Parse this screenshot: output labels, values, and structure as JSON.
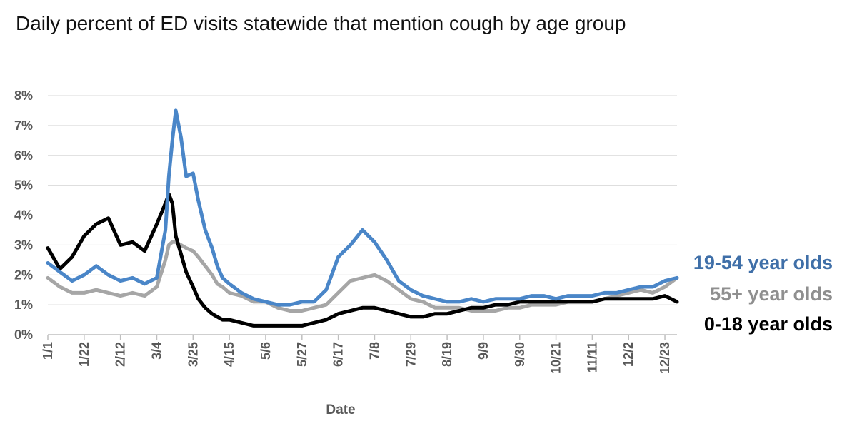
{
  "chart_data": {
    "type": "line",
    "title": "Daily percent of ED visits statewide that mention cough by age group",
    "xlabel": "Date",
    "ylabel": "",
    "x_tick_labels": [
      "1/1",
      "1/22",
      "2/12",
      "3/4",
      "3/25",
      "4/15",
      "5/6",
      "5/27",
      "6/17",
      "7/8",
      "7/29",
      "8/19",
      "9/9",
      "9/30",
      "10/21",
      "11/11",
      "12/2",
      "12/23"
    ],
    "y_tick_labels": [
      "0%",
      "1%",
      "2%",
      "3%",
      "4%",
      "5%",
      "6%",
      "7%",
      "8%"
    ],
    "ylim": [
      0,
      8
    ],
    "y_unit": "%",
    "grid": true,
    "legend": "right",
    "x_day_of_year": [
      0,
      7,
      14,
      21,
      28,
      35,
      42,
      49,
      56,
      63,
      68,
      70,
      72,
      74,
      77,
      80,
      84,
      87,
      91,
      95,
      98,
      101,
      105,
      112,
      119,
      126,
      133,
      140,
      147,
      154,
      161,
      168,
      175,
      182,
      189,
      196,
      203,
      210,
      217,
      224,
      231,
      238,
      245,
      252,
      259,
      266,
      273,
      280,
      287,
      294,
      301,
      308,
      315,
      322,
      329,
      336,
      343,
      350,
      357,
      364
    ],
    "series": [
      {
        "name": "19-54 year olds",
        "color": "#4A86C8",
        "label_color": "#3F6FA8",
        "values": [
          2.4,
          2.1,
          1.8,
          2.0,
          2.3,
          2.0,
          1.8,
          1.9,
          1.7,
          1.9,
          3.5,
          5.3,
          6.5,
          7.5,
          6.6,
          5.3,
          5.4,
          4.5,
          3.5,
          2.9,
          2.3,
          1.9,
          1.7,
          1.4,
          1.2,
          1.1,
          1.0,
          1.0,
          1.1,
          1.1,
          1.5,
          2.6,
          3.0,
          3.5,
          3.1,
          2.5,
          1.8,
          1.5,
          1.3,
          1.2,
          1.1,
          1.1,
          1.2,
          1.1,
          1.2,
          1.2,
          1.2,
          1.3,
          1.3,
          1.2,
          1.3,
          1.3,
          1.3,
          1.4,
          1.4,
          1.5,
          1.6,
          1.6,
          1.8,
          1.9
        ]
      },
      {
        "name": "55+ year olds",
        "color": "#A6A6A6",
        "label_color": "#8F8F8F",
        "values": [
          1.9,
          1.6,
          1.4,
          1.4,
          1.5,
          1.4,
          1.3,
          1.4,
          1.3,
          1.6,
          2.5,
          3.0,
          3.1,
          3.1,
          3.0,
          2.9,
          2.8,
          2.6,
          2.3,
          2.0,
          1.7,
          1.6,
          1.4,
          1.3,
          1.1,
          1.1,
          0.9,
          0.8,
          0.8,
          0.9,
          1.0,
          1.4,
          1.8,
          1.9,
          2.0,
          1.8,
          1.5,
          1.2,
          1.1,
          0.9,
          0.9,
          0.9,
          0.8,
          0.8,
          0.8,
          0.9,
          0.9,
          1.0,
          1.0,
          1.0,
          1.1,
          1.1,
          1.1,
          1.2,
          1.3,
          1.4,
          1.5,
          1.4,
          1.6,
          1.9
        ]
      },
      {
        "name": "0-18 year olds",
        "color": "#000000",
        "label_color": "#000000",
        "values": [
          2.9,
          2.2,
          2.6,
          3.3,
          3.7,
          3.9,
          3.0,
          3.1,
          2.8,
          3.7,
          4.4,
          4.7,
          4.4,
          3.3,
          2.7,
          2.1,
          1.6,
          1.2,
          0.9,
          0.7,
          0.6,
          0.5,
          0.5,
          0.4,
          0.3,
          0.3,
          0.3,
          0.3,
          0.3,
          0.4,
          0.5,
          0.7,
          0.8,
          0.9,
          0.9,
          0.8,
          0.7,
          0.6,
          0.6,
          0.7,
          0.7,
          0.8,
          0.9,
          0.9,
          1.0,
          1.0,
          1.1,
          1.1,
          1.1,
          1.1,
          1.1,
          1.1,
          1.1,
          1.2,
          1.2,
          1.2,
          1.2,
          1.2,
          1.3,
          1.1
        ]
      }
    ]
  }
}
